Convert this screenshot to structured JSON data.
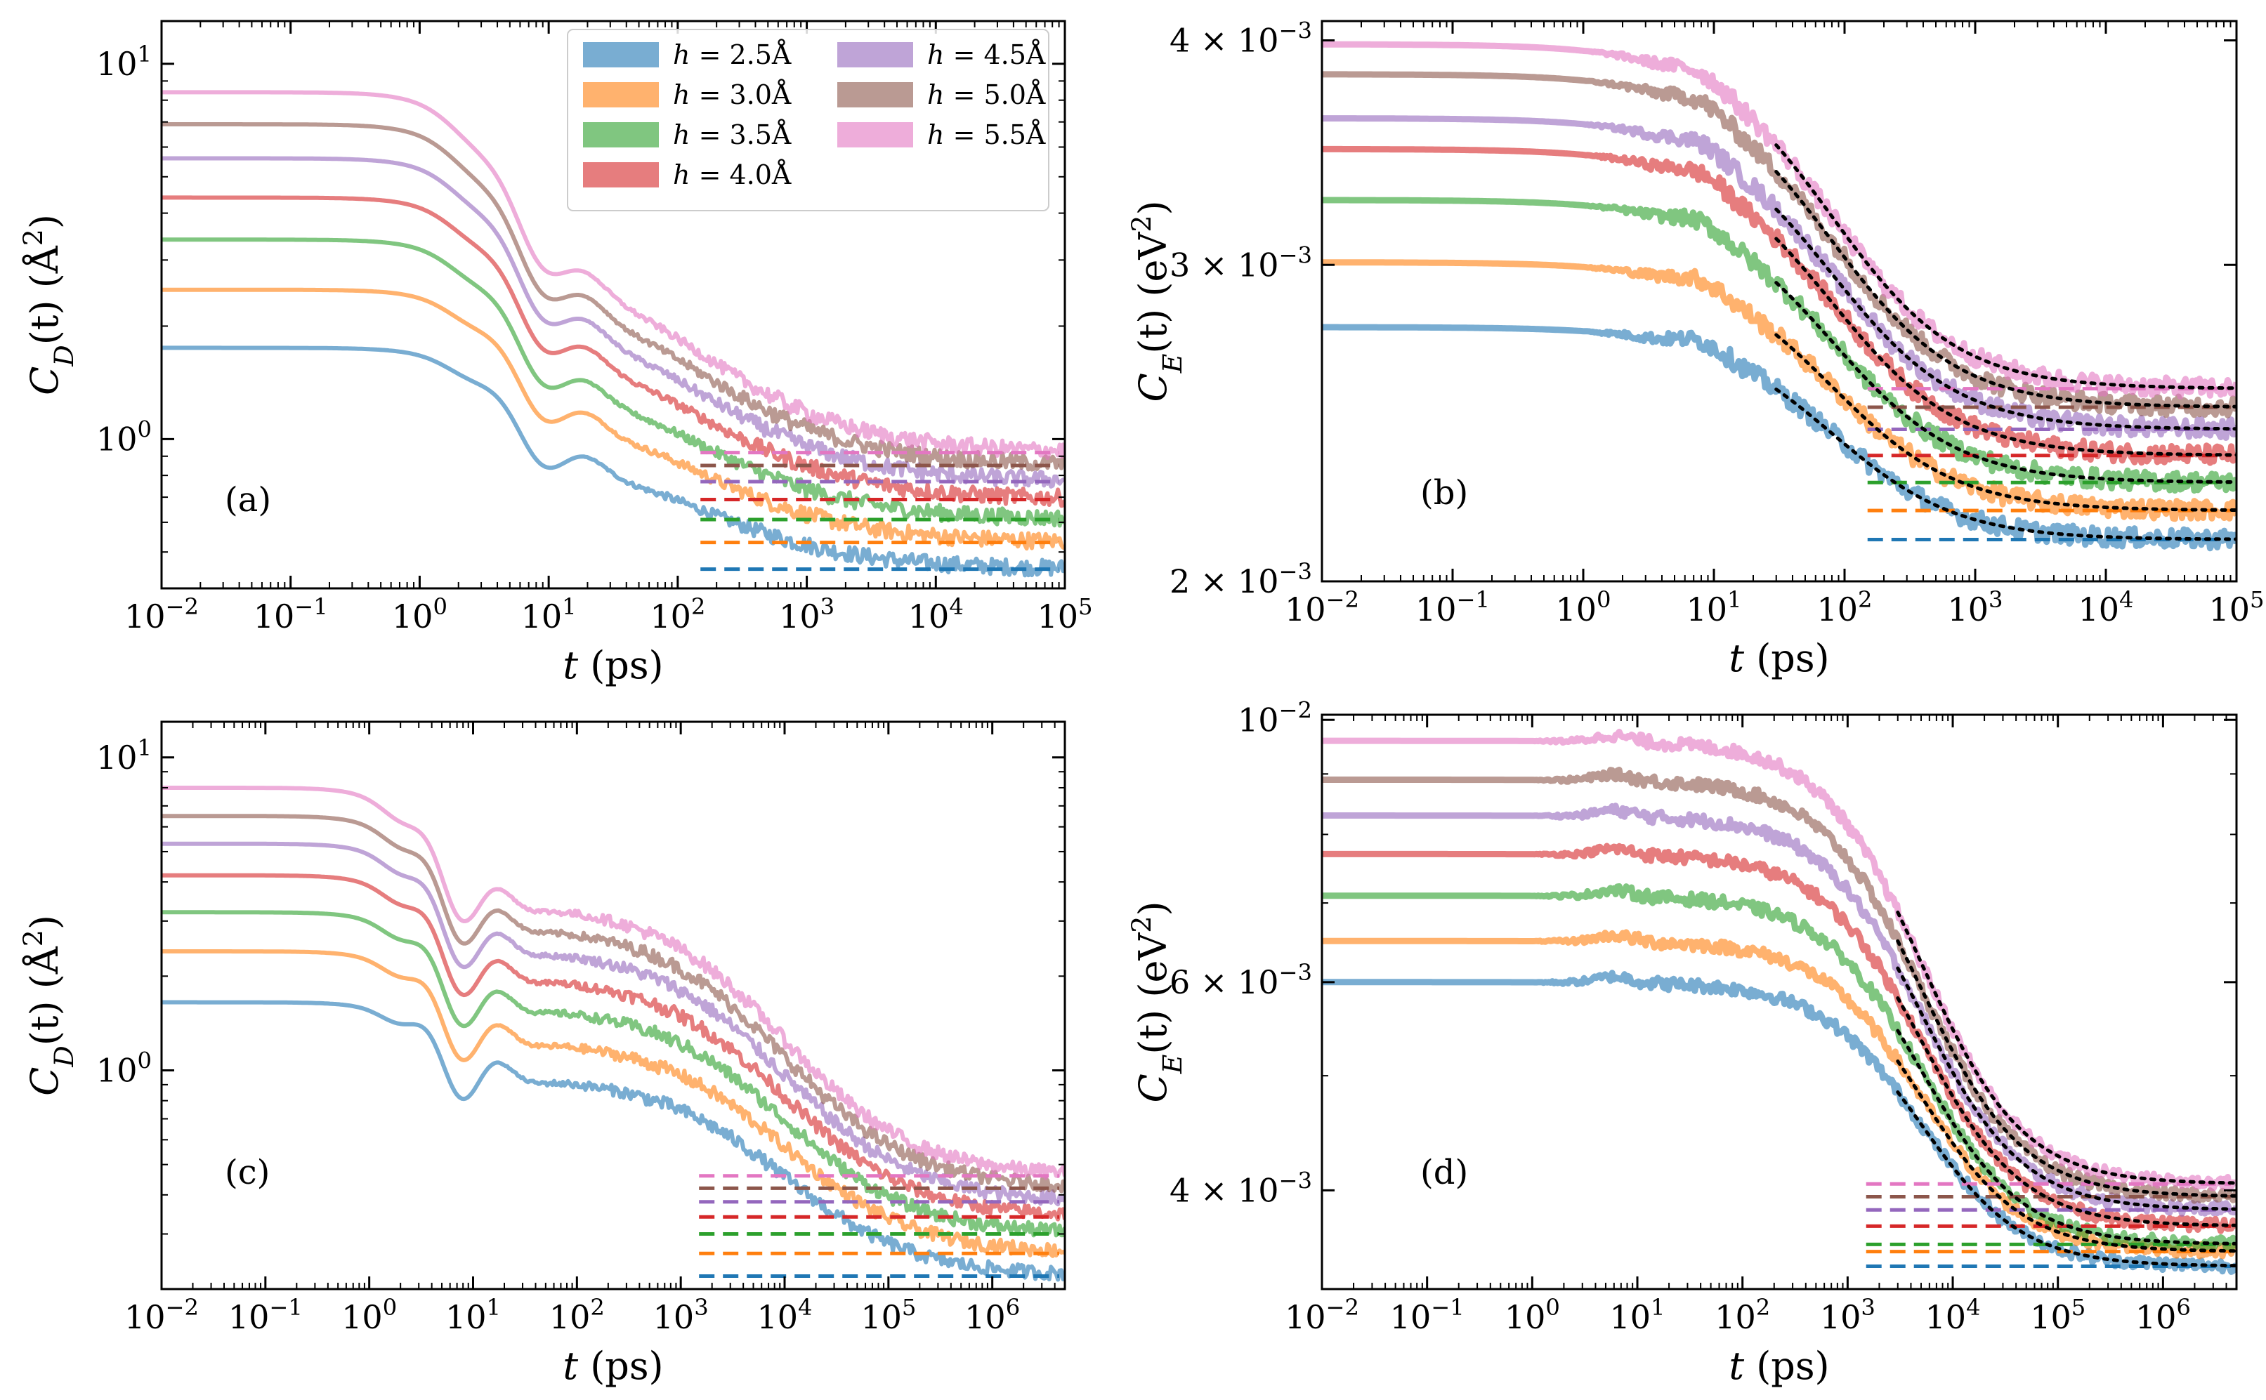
{
  "chart_data": [
    {
      "type": "line",
      "panel_label": "(a)",
      "xlabel": "t (ps)",
      "ylabel": "C_D(t) (Å²)",
      "x_scale": "log",
      "y_scale": "log",
      "xlim": [
        0.01,
        100000
      ],
      "ylim": [
        0.4,
        13
      ],
      "x_tick_labels": [
        "10^-2",
        "10^-1",
        "10^0",
        "10^1",
        "10^2",
        "10^3",
        "10^4",
        "10^5"
      ],
      "y_tick_labels": [
        "10^0",
        "10^1"
      ],
      "legend": {
        "placement": "top-right",
        "columns": 2
      },
      "shape": {
        "t_fall": 3.5,
        "oscillation": 0.12,
        "tail": [
          130,
          2.2
        ],
        "noise": 0.05,
        "dash_start": 150
      },
      "series": [
        {
          "name": "h = 2.5Å",
          "color": "#1f77b4",
          "plateau": 1.75,
          "mid": 0.97,
          "final": 0.45
        },
        {
          "name": "h = 3.0Å",
          "color": "#ff7f0e",
          "plateau": 2.5,
          "mid": 1.3,
          "final": 0.53
        },
        {
          "name": "h = 3.5Å",
          "color": "#2ca02c",
          "plateau": 3.4,
          "mid": 1.6,
          "final": 0.61
        },
        {
          "name": "h = 4.0Å",
          "color": "#d62728",
          "plateau": 4.4,
          "mid": 2.0,
          "final": 0.69
        },
        {
          "name": "h = 4.5Å",
          "color": "#9467bd",
          "plateau": 5.6,
          "mid": 2.4,
          "final": 0.77
        },
        {
          "name": "h = 5.0Å",
          "color": "#8c564b",
          "plateau": 6.9,
          "mid": 2.8,
          "final": 0.85
        },
        {
          "name": "h = 5.5Å",
          "color": "#e377c2",
          "plateau": 8.4,
          "mid": 3.3,
          "final": 0.92
        }
      ]
    },
    {
      "type": "line",
      "panel_label": "(b)",
      "xlabel": "t (ps)",
      "ylabel": "C_E(t) (eV²)",
      "x_scale": "log",
      "y_scale": "log",
      "xlim": [
        0.01,
        100000
      ],
      "ylim": [
        0.002,
        0.0041
      ],
      "x_tick_labels": [
        "10^-2",
        "10^-1",
        "10^0",
        "10^1",
        "10^2",
        "10^3",
        "10^4",
        "10^5"
      ],
      "y_tick_labels": [
        "2 × 10^-3",
        "3 × 10^-3",
        "4 × 10^-3"
      ],
      "fit_lines": {
        "style": "black dotted",
        "x_start": 30
      },
      "shape": {
        "t_fall": 80,
        "bump": 8,
        "noise": 0.012,
        "dash_start": 150
      },
      "series": [
        {
          "name": "h = 2.5Å",
          "color": "#1f77b4",
          "plateau": 0.00277,
          "final": 0.00211
        },
        {
          "name": "h = 3.0Å",
          "color": "#ff7f0e",
          "plateau": 0.00301,
          "final": 0.00219
        },
        {
          "name": "h = 3.5Å",
          "color": "#2ca02c",
          "plateau": 0.00326,
          "final": 0.00227
        },
        {
          "name": "h = 4.0Å",
          "color": "#d62728",
          "plateau": 0.00348,
          "final": 0.00235
        },
        {
          "name": "h = 4.5Å",
          "color": "#9467bd",
          "plateau": 0.00362,
          "final": 0.00243
        },
        {
          "name": "h = 5.0Å",
          "color": "#8c564b",
          "plateau": 0.00383,
          "final": 0.0025
        },
        {
          "name": "h = 5.5Å",
          "color": "#e377c2",
          "plateau": 0.00398,
          "final": 0.00256
        }
      ]
    },
    {
      "type": "line",
      "panel_label": "(c)",
      "xlabel": "t (ps)",
      "ylabel": "C_D(t) (Å²)",
      "x_scale": "log",
      "y_scale": "log",
      "xlim": [
        0.01,
        5000000
      ],
      "ylim": [
        0.2,
        13
      ],
      "x_tick_labels": [
        "10^-2",
        "10^-1",
        "10^0",
        "10^1",
        "10^2",
        "10^3",
        "10^4",
        "10^5",
        "10^6"
      ],
      "y_tick_labels": [
        "10^0",
        "10^1"
      ],
      "shape": {
        "t_fall": 3.0,
        "oscillation": 0.22,
        "tail": [
          10000,
          1.8
        ],
        "noise": 0.05,
        "dash_start": 1500
      },
      "series": [
        {
          "name": "h = 2.5Å",
          "color": "#1f77b4",
          "plateau": 1.65,
          "mid": 0.95,
          "final": 0.22
        },
        {
          "name": "h = 3.0Å",
          "color": "#ff7f0e",
          "plateau": 2.4,
          "mid": 1.25,
          "final": 0.26
        },
        {
          "name": "h = 3.5Å",
          "color": "#2ca02c",
          "plateau": 3.2,
          "mid": 1.6,
          "final": 0.3
        },
        {
          "name": "h = 4.0Å",
          "color": "#d62728",
          "plateau": 4.2,
          "mid": 2.0,
          "final": 0.34
        },
        {
          "name": "h = 4.5Å",
          "color": "#9467bd",
          "plateau": 5.3,
          "mid": 2.45,
          "final": 0.38
        },
        {
          "name": "h = 5.0Å",
          "color": "#8c564b",
          "plateau": 6.5,
          "mid": 2.9,
          "final": 0.42
        },
        {
          "name": "h = 5.5Å",
          "color": "#e377c2",
          "plateau": 8.0,
          "mid": 3.4,
          "final": 0.46
        }
      ]
    },
    {
      "type": "line",
      "panel_label": "(d)",
      "xlabel": "t (ps)",
      "ylabel": "C_E(t) (eV²)",
      "x_scale": "log",
      "y_scale": "log",
      "xlim": [
        0.01,
        5000000
      ],
      "ylim": [
        0.0033,
        0.0101
      ],
      "x_tick_labels": [
        "10^-2",
        "10^-1",
        "10^0",
        "10^1",
        "10^2",
        "10^3",
        "10^4",
        "10^5",
        "10^6"
      ],
      "y_tick_labels": [
        "4 × 10^-3",
        "6 × 10^-3",
        "10^-2"
      ],
      "fit_lines": {
        "style": "black dotted",
        "x_start": 3000
      },
      "shape": {
        "t_fall": 5000,
        "bump": 6,
        "noise": 0.012,
        "dash_start": 1500
      },
      "series": [
        {
          "name": "h = 2.5Å",
          "color": "#1f77b4",
          "plateau": 0.006,
          "final": 0.00345
        },
        {
          "name": "h = 3.0Å",
          "color": "#ff7f0e",
          "plateau": 0.0065,
          "final": 0.00355
        },
        {
          "name": "h = 3.5Å",
          "color": "#2ca02c",
          "plateau": 0.0071,
          "final": 0.0036
        },
        {
          "name": "h = 4.0Å",
          "color": "#d62728",
          "plateau": 0.0077,
          "final": 0.00373
        },
        {
          "name": "h = 4.5Å",
          "color": "#9467bd",
          "plateau": 0.0083,
          "final": 0.00385
        },
        {
          "name": "h = 5.0Å",
          "color": "#8c564b",
          "plateau": 0.0089,
          "final": 0.00395
        },
        {
          "name": "h = 5.5Å",
          "color": "#e377c2",
          "plateau": 0.0096,
          "final": 0.00405
        }
      ]
    }
  ]
}
